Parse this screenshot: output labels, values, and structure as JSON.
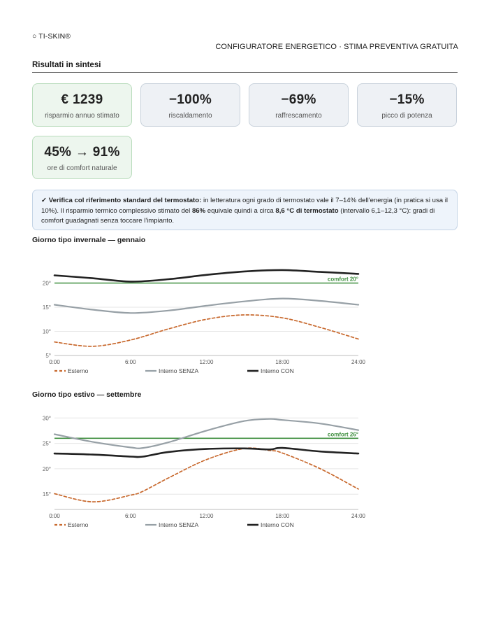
{
  "header": {
    "brand": "○ TI-SKIN®",
    "subtitle": "CONFIGURATORE ENERGETICO · STIMA PREVENTIVA GRATUITA"
  },
  "summary": {
    "title": "Risultati in sintesi",
    "kpis": [
      {
        "value": "€ 1239",
        "label": "risparmio annuo stimato"
      },
      {
        "value": "−100%",
        "label": "riscaldamento"
      },
      {
        "value": "−69%",
        "label": "raffrescamento"
      },
      {
        "value": "−15%",
        "label": "picco di potenza"
      },
      {
        "value": "45% → 91%",
        "label": "ore di comfort naturale"
      }
    ]
  },
  "note": {
    "check": "✓",
    "lead": "Verifica col riferimento standard del termostato:",
    "t1": " in letteratura ogni grado di termostato vale il 7–14% dell'energia (in pratica si usa il 10%). Il risparmio termico complessivo stimato del ",
    "b1": "86%",
    "t2": " equivale quindi a circa ",
    "b2": "8,6 °C di termostato",
    "t3": " (intervallo 6,1–12,3 °C): gradi di comfort guadagnati senza toccare l'impianto."
  },
  "chart_data": [
    {
      "type": "line",
      "title": "Giorno tipo invernale — gennaio",
      "x": [
        0,
        3,
        6,
        9,
        12,
        15,
        18,
        21,
        24
      ],
      "x_ticks": [
        "0:00",
        "6:00",
        "12:00",
        "18:00",
        "24:00"
      ],
      "x_tick_values": [
        0,
        6,
        12,
        18,
        24
      ],
      "y_ticks": [
        "5°",
        "10°",
        "15°",
        "20°"
      ],
      "y_tick_values": [
        5,
        10,
        15,
        20
      ],
      "ylim": [
        5,
        25
      ],
      "grid": true,
      "legend_position": "bottom",
      "reference_line": {
        "y": 20,
        "label": "comfort 20°",
        "color": "#3f8f3f"
      },
      "series": [
        {
          "name": "Esterno",
          "color": "#c8692e",
          "style": "dashed",
          "values": [
            7.8,
            6.9,
            8.2,
            10.5,
            12.5,
            13.4,
            12.8,
            10.8,
            8.4
          ]
        },
        {
          "name": "Interno SENZA",
          "color": "#97a0a6",
          "style": "solid",
          "values": [
            15.5,
            14.5,
            13.8,
            14.3,
            15.3,
            16.2,
            16.8,
            16.3,
            15.5
          ]
        },
        {
          "name": "Interno CON",
          "color": "#222222",
          "style": "solid",
          "values": [
            21.6,
            21.0,
            20.3,
            20.8,
            21.7,
            22.4,
            22.7,
            22.3,
            21.9
          ]
        }
      ]
    },
    {
      "type": "line",
      "title": "Giorno tipo estivo — settembre",
      "x": [
        0,
        3,
        6,
        7,
        9,
        12,
        15,
        17,
        18,
        21,
        24
      ],
      "x_ticks": [
        "0:00",
        "6:00",
        "12:00",
        "18:00",
        "24:00"
      ],
      "x_tick_values": [
        0,
        6,
        12,
        18,
        24
      ],
      "y_ticks": [
        "15°",
        "20°",
        "25°",
        "30°"
      ],
      "y_tick_values": [
        15,
        20,
        25,
        30
      ],
      "ylim": [
        12,
        31
      ],
      "grid": true,
      "legend_position": "bottom",
      "reference_line": {
        "y": 26,
        "label": "comfort 26°",
        "color": "#3f8f3f"
      },
      "series": [
        {
          "name": "Esterno",
          "color": "#c8692e",
          "style": "dashed",
          "values": [
            15.1,
            13.5,
            14.8,
            15.6,
            18.2,
            21.8,
            24.0,
            23.6,
            23.1,
            20.0,
            16.0
          ]
        },
        {
          "name": "Interno SENZA",
          "color": "#97a0a6",
          "style": "solid",
          "values": [
            26.8,
            25.3,
            24.2,
            24.1,
            25.2,
            27.5,
            29.4,
            29.8,
            29.6,
            28.9,
            27.6
          ]
        },
        {
          "name": "Interno CON",
          "color": "#222222",
          "style": "solid",
          "values": [
            23.0,
            22.8,
            22.4,
            22.4,
            23.3,
            23.9,
            24.0,
            23.8,
            24.1,
            23.4,
            23.0
          ]
        }
      ]
    }
  ]
}
